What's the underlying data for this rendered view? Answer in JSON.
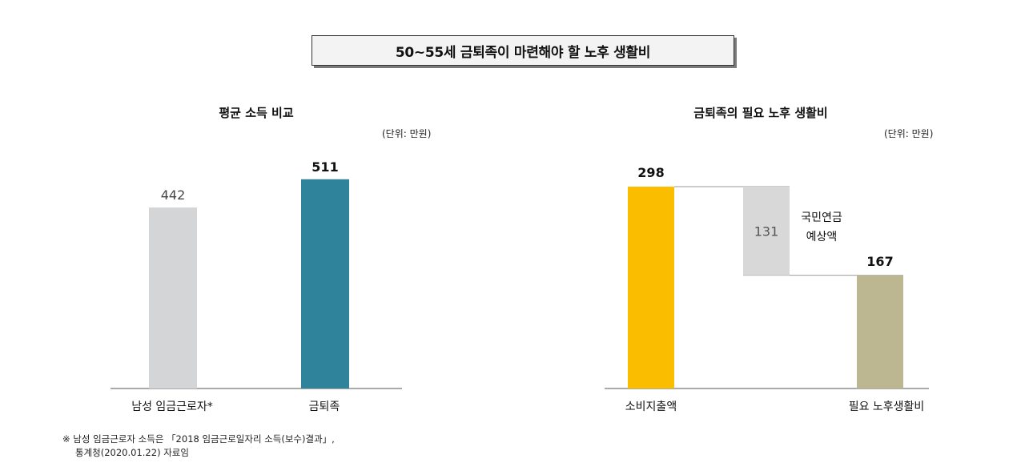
{
  "main_title": "50~55세 금퇴족이 마련해야 할 노후 생활비",
  "chart_data": [
    {
      "type": "bar",
      "title": "평균 소득 비교",
      "unit": "(단위: 만원)",
      "categories": [
        "남성 임금근로자*",
        "금퇴족"
      ],
      "values": [
        442,
        511
      ],
      "colors": [
        "#d4d5d7",
        "#2f839a"
      ],
      "value_label_bold": [
        false,
        true
      ]
    },
    {
      "type": "bar",
      "subtype": "waterfall",
      "title": "금퇴족의 필요 노후 생활비",
      "unit": "(단위: 만원)",
      "categories": [
        "소비지출액",
        "필요 노후생활비"
      ],
      "values": [
        298,
        167
      ],
      "colors": [
        "#fbbd00",
        "#bdb791"
      ],
      "delta": {
        "value": 131,
        "label": [
          "국민연금",
          "예상액"
        ],
        "color": "#d8d8d8"
      }
    }
  ],
  "footnote": [
    "※ 남성 임금근로자 소득은 「2018 임금근로일자리 소득(보수)결과」,",
    "통계청(2020.01.22) 자료임"
  ]
}
